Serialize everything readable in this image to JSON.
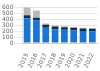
{
  "chart_data": {
    "type": "bar",
    "stacked": true,
    "grid": true,
    "categories": [
      "2015",
      "2016",
      "2017",
      "2018",
      "2019",
      "2020",
      "2021",
      "2022"
    ],
    "series": [
      {
        "color": "#1a75d2",
        "values": [
          420000,
          380000,
          260000,
          235000,
          225000,
          215000,
          205000,
          200000
        ]
      },
      {
        "color": "#1a2a3a",
        "values": [
          50000,
          50000,
          48000,
          45000,
          44000,
          43000,
          42000,
          41000
        ]
      },
      {
        "color": "#b8b8b8",
        "values": [
          130000,
          120000,
          22000,
          18000,
          16000,
          14000,
          12000,
          11000
        ]
      }
    ],
    "ylim": [
      0,
      650000
    ],
    "yticks": [
      0,
      {
        "value": 100000,
        "label": "100"
      },
      {
        "value": 200000,
        "label": "200"
      },
      {
        "value": 300000,
        "label": "300"
      },
      {
        "value": 400000,
        "label": "400"
      },
      {
        "value": 500000,
        "label": "500"
      },
      {
        "value": 600000,
        "label": "600"
      }
    ]
  }
}
